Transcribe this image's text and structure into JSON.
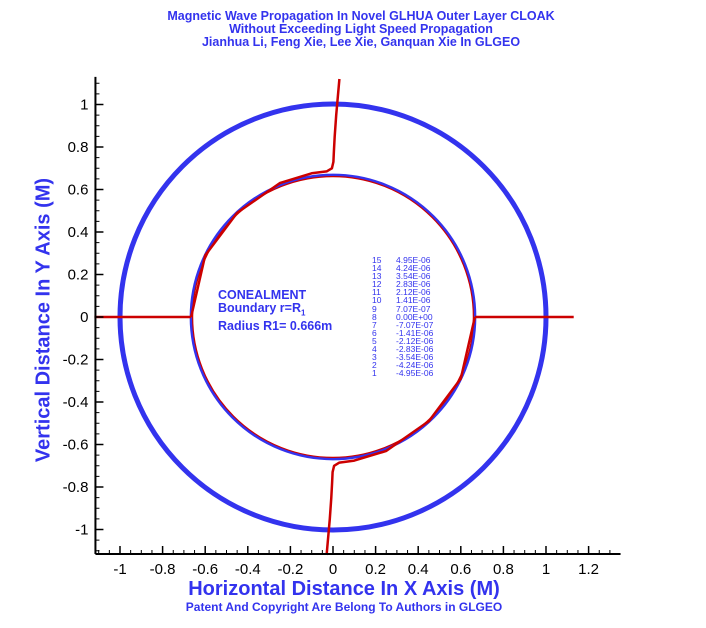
{
  "title": {
    "line1": "Magnetic Wave Propagation In Novel GLHUA Outer Layer  CLOAK",
    "line2": "Without Exceeding Light Speed Propagation",
    "line3": "Jianhua Li, Feng Xie, Lee Xie, Ganquan Xie In GLGEO"
  },
  "footnote": "Patent And Copyright Are Belong To Authors in GLGEO",
  "annotation": {
    "line1": "CONEALMENT",
    "line2": "Boundary r=R",
    "line2_sub": "1",
    "line3": "Radius R1= 0.666m"
  },
  "colors": {
    "text": "#3333ee",
    "outer_circle": "#3333ee",
    "inner_circle": "#3333ee",
    "wave": "#cc0000",
    "axis": "#000000"
  },
  "chart_data": {
    "type": "line",
    "title": "Magnetic Wave Propagation In Novel GLHUA Outer Layer  CLOAK",
    "xlabel": "Horizontal Distance In X Axis (M)",
    "ylabel": "Vertical Distance In Y Axis (M)",
    "xlim": [
      -1.12,
      1.35
    ],
    "ylim": [
      -1.12,
      1.13
    ],
    "xticks": [
      -1,
      -0.8,
      -0.6,
      -0.4,
      -0.2,
      0,
      0.2,
      0.4,
      0.6,
      0.8,
      1,
      1.2
    ],
    "xtick_labels": [
      "-1",
      "-0.8",
      "-0.6",
      "-0.4",
      "-0.2",
      "0",
      "0.2",
      "0.4",
      "0.6",
      "0.8",
      "1",
      "1.2"
    ],
    "yticks": [
      -1,
      -0.8,
      -0.6,
      -0.4,
      -0.2,
      0,
      0.2,
      0.4,
      0.6,
      0.8,
      1
    ],
    "ytick_labels": [
      "-1",
      "-0.8",
      "-0.6",
      "-0.4",
      "-0.2",
      "0",
      "0.2",
      "0.4",
      "0.6",
      "0.8",
      "1"
    ],
    "grid": false,
    "circles": [
      {
        "name": "outer-boundary",
        "cx": 0,
        "cy": 0,
        "r": 1.0
      },
      {
        "name": "inner-boundary",
        "cx": 0,
        "cy": 0,
        "r": 0.666
      }
    ],
    "series": [
      {
        "x": [
          0.03,
          0.015,
          0.008,
          0.004,
          0.002,
          -0.005,
          -0.03,
          -0.1,
          -0.25,
          -0.45,
          -0.6,
          -0.666
        ],
        "y": [
          1.12,
          0.95,
          0.85,
          0.78,
          0.73,
          0.7,
          0.685,
          0.676,
          0.63,
          0.49,
          0.29,
          0.0
        ]
      },
      {
        "x": [
          0.666,
          0.6,
          0.45,
          0.25,
          0.1,
          0.03,
          0.005,
          -0.002,
          -0.004,
          -0.008,
          -0.015,
          -0.03
        ],
        "y": [
          0.0,
          -0.29,
          -0.49,
          -0.63,
          -0.676,
          -0.685,
          -0.7,
          -0.73,
          -0.78,
          -0.85,
          -0.95,
          -1.12
        ]
      },
      {
        "x": [
          -1.12,
          -0.666
        ],
        "y": [
          0,
          0
        ]
      },
      {
        "x": [
          0.666,
          1.13
        ],
        "y": [
          0,
          0
        ]
      },
      {
        "x": [
          -0.666,
          0.666
        ],
        "y": [
          0,
          0
        ],
        "type": "circle-arc"
      }
    ],
    "contour_legend": [
      {
        "level": "15",
        "value": "4.95E-06"
      },
      {
        "level": "14",
        "value": "4.24E-06"
      },
      {
        "level": "13",
        "value": "3.54E-06"
      },
      {
        "level": "12",
        "value": "2.83E-06"
      },
      {
        "level": "11",
        "value": "2.12E-06"
      },
      {
        "level": "10",
        "value": "1.41E-06"
      },
      {
        "level": "9",
        "value": "7.07E-07"
      },
      {
        "level": "8",
        "value": "0.00E+00"
      },
      {
        "level": "7",
        "value": "-7.07E-07"
      },
      {
        "level": "6",
        "value": "-1.41E-06"
      },
      {
        "level": "5",
        "value": "-2.12E-06"
      },
      {
        "level": "4",
        "value": "-2.83E-06"
      },
      {
        "level": "3",
        "value": "-3.54E-06"
      },
      {
        "level": "2",
        "value": "-4.24E-06"
      },
      {
        "level": "1",
        "value": "-4.95E-06"
      }
    ]
  }
}
